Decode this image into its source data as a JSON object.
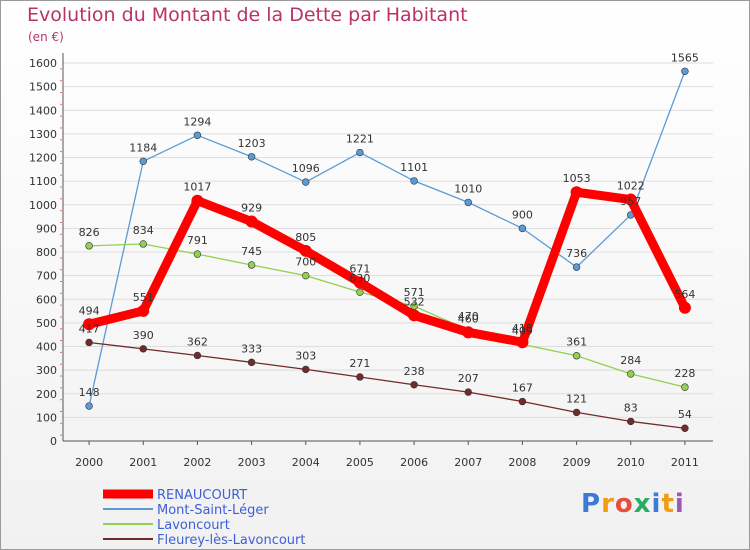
{
  "title": "Evolution du Montant de la Dette par Habitant",
  "unit_label": "(en €)",
  "logo": "Proxiti",
  "colors": {
    "title": "#b8336a",
    "RENAUCOURT": "#ff0000",
    "Mont-Saint-Léger": "#5b9bd5",
    "Lavoncourt": "#92d050",
    "Fleurey-lès-Lavoncourt": "#722b2b",
    "grid": "#dddddd",
    "axis_text": "#333333"
  },
  "chart_data": {
    "type": "line",
    "title": "Evolution du Montant de la Dette par Habitant",
    "ylabel": "(en €)",
    "xlabel": "",
    "x": [
      "2000",
      "2001",
      "2002",
      "2003",
      "2004",
      "2005",
      "2006",
      "2007",
      "2008",
      "2009",
      "2010",
      "2011"
    ],
    "ylim": [
      0,
      1600
    ],
    "yticks": [
      0,
      100,
      200,
      300,
      400,
      500,
      600,
      700,
      800,
      900,
      1000,
      1100,
      1200,
      1300,
      1400,
      1500,
      1600
    ],
    "grid": true,
    "legend_position": "bottom-left",
    "series": [
      {
        "name": "RENAUCOURT",
        "color": "#ff0000",
        "bold": true,
        "values": [
          494,
          551,
          1017,
          929,
          805,
          671,
          532,
          460,
          418,
          1053,
          1022,
          564
        ],
        "labels": [
          "494",
          "551",
          "1017",
          "929",
          "805",
          "671",
          "532",
          "460",
          "418",
          "1053",
          "1022",
          "564"
        ]
      },
      {
        "name": "Mont-Saint-Léger",
        "color": "#5b9bd5",
        "values": [
          148,
          1184,
          1294,
          1203,
          1096,
          1221,
          1101,
          1010,
          900,
          736,
          957,
          1565
        ],
        "labels": [
          "148",
          "1184",
          "1294",
          "1203",
          "1096",
          "1221",
          "1101",
          "1010",
          "900",
          "736",
          "957",
          "1565"
        ]
      },
      {
        "name": "Lavoncourt",
        "color": "#92d050",
        "values": [
          826,
          834,
          791,
          745,
          700,
          630,
          571,
          470,
          409,
          361,
          284,
          228
        ],
        "labels": [
          "826",
          "834",
          "791",
          "745",
          "700",
          "630",
          "571",
          "470",
          "409",
          "361",
          "284",
          "228"
        ]
      },
      {
        "name": "Fleurey-lès-Lavoncourt",
        "color": "#722b2b",
        "values": [
          417,
          390,
          362,
          333,
          303,
          271,
          238,
          207,
          167,
          121,
          83,
          54
        ],
        "labels": [
          "417",
          "390",
          "362",
          "333",
          "303",
          "271",
          "238",
          "207",
          "167",
          "121",
          "83",
          "54"
        ]
      }
    ]
  }
}
